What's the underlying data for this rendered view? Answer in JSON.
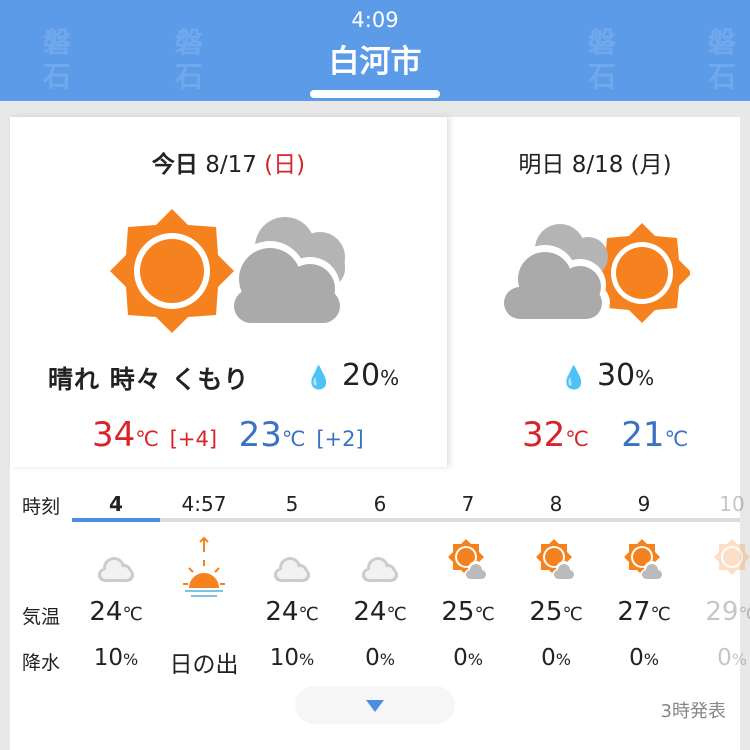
{
  "header": {
    "time": "4:09",
    "title": "白河市",
    "ghost_labels": [
      "磐石",
      "磐石",
      "磐石",
      "磐石"
    ]
  },
  "today": {
    "label": "今日",
    "date": "8/17",
    "weekday": "(日)",
    "icon": "sunny-then-cloudy-icon",
    "condition": "晴れ 時々 くもり",
    "rain_pct": "20",
    "rain_unit": "%",
    "high": "34",
    "high_unit": "℃",
    "high_diff": "[+4]",
    "low": "23",
    "low_unit": "℃",
    "low_diff": "[+2]"
  },
  "tomorrow": {
    "label": "明日",
    "date": "8/18",
    "weekday": "(月)",
    "icon": "cloudy-then-sunny-icon",
    "rain_pct": "30",
    "rain_unit": "%",
    "high": "32",
    "high_unit": "℃",
    "low": "21",
    "low_unit": "℃"
  },
  "hourly": {
    "labels": {
      "time": "時刻",
      "temp": "気温",
      "precip": "降水"
    },
    "temp_unit": "℃",
    "pct_unit": "%",
    "items": [
      {
        "hour": "4",
        "icon": "cloud-icon",
        "temp": "24",
        "precip": "10"
      },
      {
        "hour": "4:57",
        "icon": "sunrise-icon",
        "temp": "",
        "precip": "日の出"
      },
      {
        "hour": "5",
        "icon": "cloud-icon",
        "temp": "24",
        "precip": "10"
      },
      {
        "hour": "6",
        "icon": "cloud-icon",
        "temp": "24",
        "precip": "0"
      },
      {
        "hour": "7",
        "icon": "sun-cloud-icon",
        "temp": "25",
        "precip": "0"
      },
      {
        "hour": "8",
        "icon": "sun-cloud-icon",
        "temp": "25",
        "precip": "0"
      },
      {
        "hour": "9",
        "icon": "sun-cloud-icon",
        "temp": "27",
        "precip": "0"
      },
      {
        "hour": "10",
        "icon": "sun-icon",
        "temp": "29",
        "precip": "0"
      }
    ],
    "selected_index": 0
  },
  "footer": {
    "issued": "3時発表"
  },
  "colors": {
    "header": "#5b9be8",
    "sun": "#f5821f",
    "cloud": "#aaaaaa",
    "high": "#d8232a",
    "low": "#3b72c4",
    "accent": "#4a8ee0"
  }
}
